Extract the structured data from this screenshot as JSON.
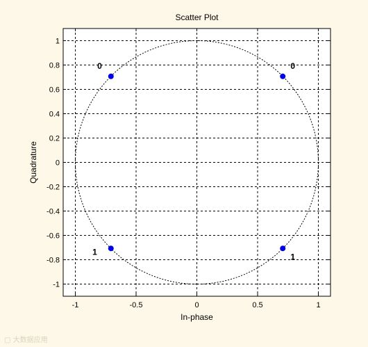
{
  "chart_data": {
    "type": "scatter",
    "title": "Scatter Plot",
    "xlabel": "In-phase",
    "ylabel": "Quadrature",
    "xlim": [
      -1.1,
      1.1
    ],
    "ylim": [
      -1.1,
      1.1
    ],
    "xticks": [
      -1,
      -0.5,
      0,
      0.5,
      1
    ],
    "xtick_labels": [
      "-1",
      "-0.5",
      "0",
      "0.5",
      "1"
    ],
    "yticks": [
      1,
      0.8,
      0.6,
      0.4,
      0.2,
      0,
      -0.2,
      -0.4,
      -0.6,
      -0.8,
      -1
    ],
    "ytick_labels": [
      "1",
      "0.8",
      "0.6",
      "0.4",
      "0.2",
      "0",
      "-0.2",
      "-0.4",
      "-0.6",
      "-0.8",
      "-1"
    ],
    "grid": true,
    "points": [
      {
        "x": -0.707,
        "y": 0.707
      },
      {
        "x": 0.707,
        "y": 0.707
      },
      {
        "x": -0.707,
        "y": -0.707
      },
      {
        "x": 0.707,
        "y": -0.707
      }
    ],
    "point_labels": [
      {
        "text": "0",
        "x": -0.8,
        "y": 0.77
      },
      {
        "text": "0",
        "x": 0.79,
        "y": 0.77
      },
      {
        "text": "1",
        "x": -0.84,
        "y": -0.76
      },
      {
        "text": "1",
        "x": 0.79,
        "y": -0.8
      }
    ],
    "reference_circle": {
      "radius": 1,
      "style": "dashed"
    },
    "colors": {
      "background": "#fdf8e7",
      "axes_background": "#ffffff",
      "points": "#0000ee",
      "grid": "#000000",
      "text": "#000000"
    }
  },
  "watermark": "大数据应用"
}
